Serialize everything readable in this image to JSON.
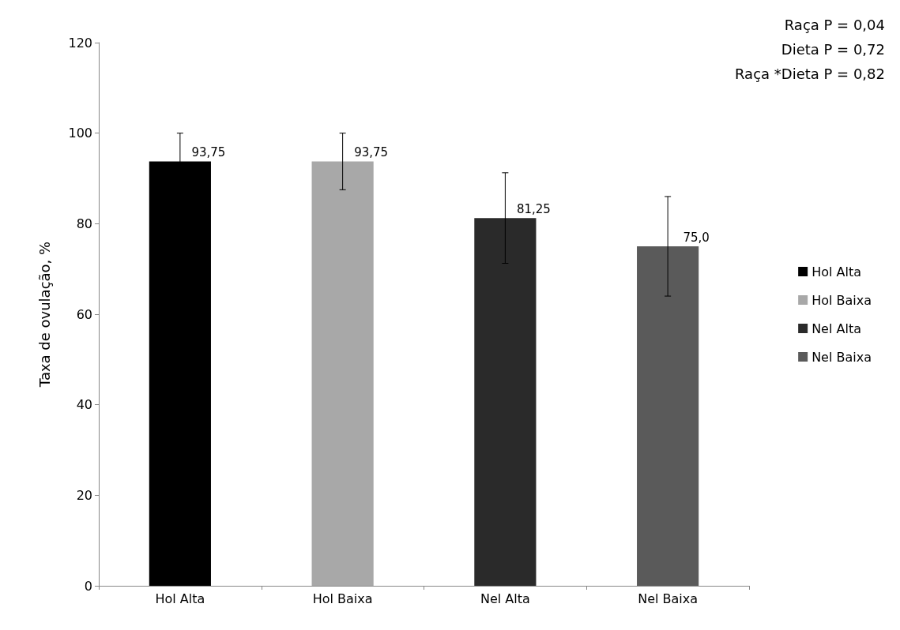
{
  "chart_data": {
    "type": "bar",
    "ylabel": "Taxa de ovulação, %",
    "categories": [
      "Hol Alta",
      "Hol Baixa",
      "Nel Alta",
      "Nel Baixa"
    ],
    "series": [
      {
        "name": "Hol Alta",
        "color": "#000000",
        "values": [
          93.75,
          null,
          null,
          null
        ],
        "errors": [
          6.25,
          null,
          null,
          null
        ],
        "value_labels": [
          "93,75",
          null,
          null,
          null
        ]
      },
      {
        "name": "Hol Baixa",
        "color": "#a8a8a8",
        "values": [
          null,
          93.75,
          null,
          null
        ],
        "errors": [
          null,
          6.25,
          null,
          null
        ],
        "value_labels": [
          null,
          "93,75",
          null,
          null
        ]
      },
      {
        "name": "Nel Alta",
        "color": "#2a2a2a",
        "values": [
          null,
          null,
          81.25,
          null
        ],
        "errors": [
          null,
          null,
          10,
          null
        ],
        "value_labels": [
          null,
          null,
          "81,25",
          null
        ]
      },
      {
        "name": "Nel Baixa",
        "color": "#5a5a5a",
        "values": [
          null,
          null,
          null,
          75
        ],
        "errors": [
          null,
          null,
          null,
          11
        ],
        "value_labels": [
          null,
          null,
          null,
          "75,0"
        ]
      }
    ],
    "ylim": [
      0,
      120
    ],
    "yticks": [
      0,
      20,
      40,
      60,
      80,
      100,
      120
    ],
    "grid": false,
    "legend": "right",
    "annotations": [
      "Raça P = 0,04",
      "Dieta P = 0,72",
      "Raça *Dieta P = 0,82"
    ]
  }
}
